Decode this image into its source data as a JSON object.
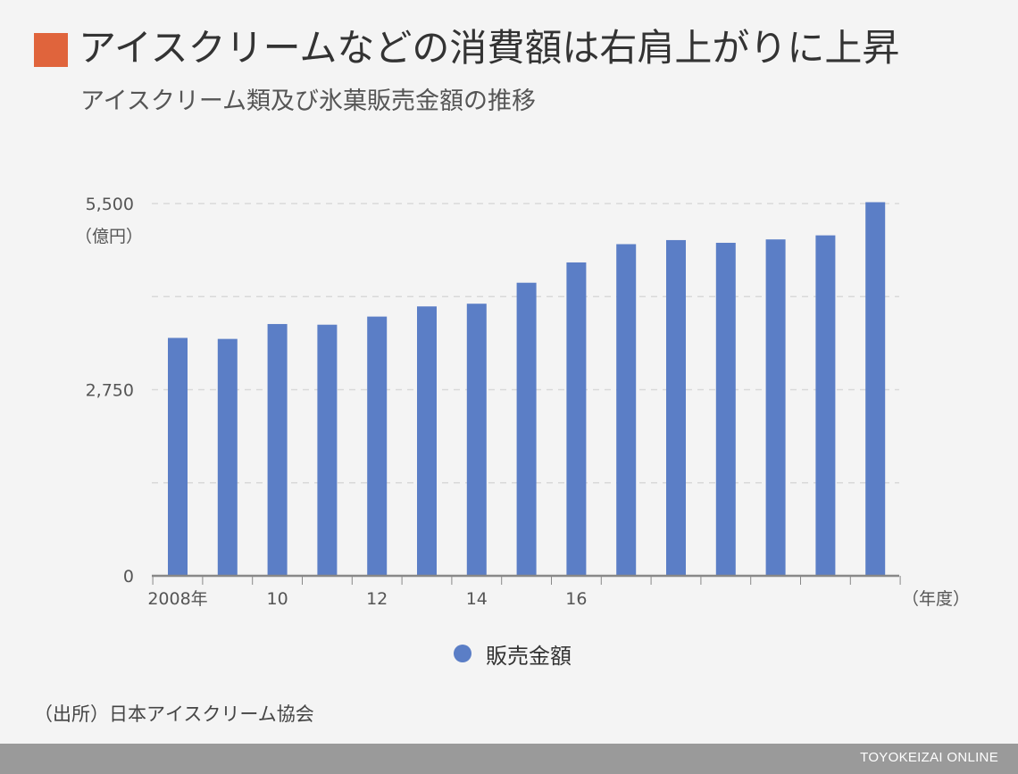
{
  "header": {
    "title": "アイスクリームなどの消費額は右肩上がりに上昇",
    "subtitle": "アイスクリーム類及び氷菓販売金額の推移"
  },
  "colors": {
    "title_marker": "#e0643c",
    "bar": "#5b7ec6",
    "grid": "#d9d9d9",
    "axis": "#888888",
    "footer": "#9a9a9a"
  },
  "chart_data": {
    "type": "bar",
    "categories": [
      "2008年",
      "",
      "10",
      "",
      "12",
      "",
      "14",
      "",
      "16",
      "",
      "",
      "",
      "",
      "",
      ""
    ],
    "series": [
      {
        "name": "販売金額",
        "values": [
          3515,
          3500,
          3720,
          3710,
          3830,
          3980,
          4020,
          4330,
          4630,
          4900,
          4960,
          4920,
          4970,
          5030,
          5520
        ]
      }
    ],
    "ylim": [
      0,
      5500
    ],
    "yticks": [
      {
        "value": 0,
        "label": "0"
      },
      {
        "value": 1375,
        "label": ""
      },
      {
        "value": 2750,
        "label": "2,750"
      },
      {
        "value": 4125,
        "label": ""
      },
      {
        "value": 5500,
        "label": "5,500"
      }
    ],
    "yunit": "（億円）",
    "xunit": "（年度）",
    "grid": true,
    "legend_position": "bottom-center"
  },
  "legend": {
    "label": "販売金額"
  },
  "source": "（出所）日本アイスクリーム協会",
  "footer": {
    "brand": "TOYOKEIZAI ONLINE"
  }
}
